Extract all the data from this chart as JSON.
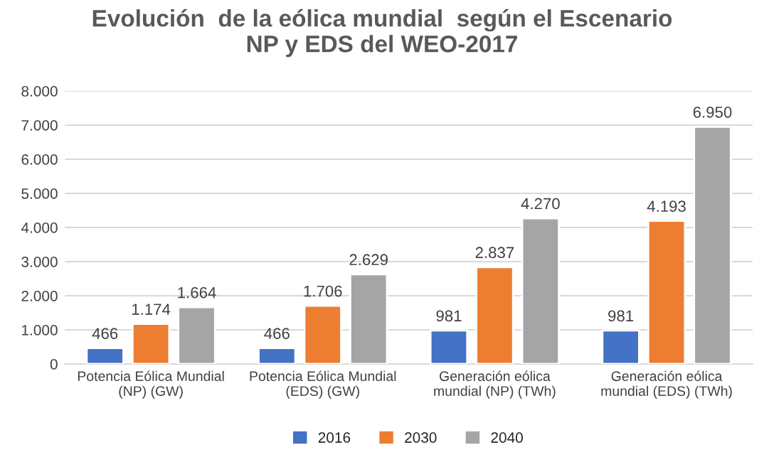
{
  "chart_data": {
    "type": "bar",
    "title": "Evolución  de la eólica mundial  según el Escenario\nNP y EDS del WEO-2017",
    "categories": [
      "Potencia Eólica Mundial\n(NP) (GW)",
      "Potencia Eólica Mundial\n(EDS) (GW)",
      "Generación eólica\nmundial (NP) (TWh)",
      "Generación eólica\nmundial (EDS) (TWh)"
    ],
    "series": [
      {
        "name": "2016",
        "color": "#4472c4",
        "values": [
          466,
          466,
          981,
          981
        ],
        "value_labels": [
          "466",
          "466",
          "981",
          "981"
        ]
      },
      {
        "name": "2030",
        "color": "#ed7d31",
        "values": [
          1174,
          1706,
          2837,
          4193
        ],
        "value_labels": [
          "1.174",
          "1.706",
          "2.837",
          "4.193"
        ]
      },
      {
        "name": "2040",
        "color": "#a5a5a5",
        "values": [
          1664,
          2629,
          4270,
          6950
        ],
        "value_labels": [
          "1.664",
          "2.629",
          "4.270",
          "6.950"
        ]
      }
    ],
    "ylim": [
      0,
      8000
    ],
    "yticks": [
      {
        "value": 0,
        "label": "0"
      },
      {
        "value": 1000,
        "label": "1.000"
      },
      {
        "value": 2000,
        "label": "2.000"
      },
      {
        "value": 3000,
        "label": "3.000"
      },
      {
        "value": 4000,
        "label": "4.000"
      },
      {
        "value": 5000,
        "label": "5.000"
      },
      {
        "value": 6000,
        "label": "6.000"
      },
      {
        "value": 7000,
        "label": "7.000"
      },
      {
        "value": 8000,
        "label": "8.000"
      }
    ],
    "grid": "y",
    "legend": "bottom"
  }
}
